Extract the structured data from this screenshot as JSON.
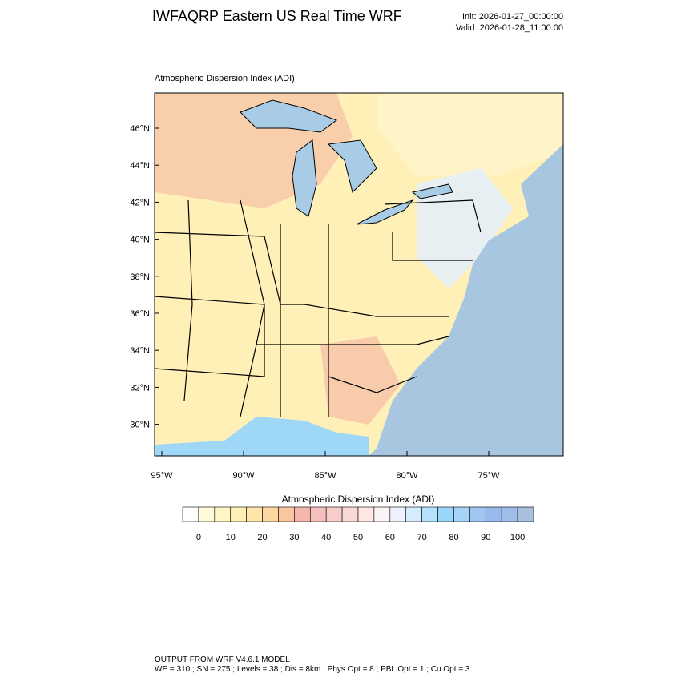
{
  "header": {
    "title": "IWFAQRP Eastern US Real Time WRF",
    "init": "Init: 2026-01-27_00:00:00",
    "valid": "Valid: 2026-01-28_11:00:00"
  },
  "map": {
    "title": "Atmospheric Dispersion Index   (ADI)",
    "lat_labels": [
      "46°N",
      "44°N",
      "42°N",
      "40°N",
      "38°N",
      "36°N",
      "34°N",
      "32°N",
      "30°N"
    ],
    "lon_labels": [
      "95°W",
      "90°W",
      "85°W",
      "80°W",
      "75°W"
    ]
  },
  "colorbar": {
    "title": "Atmospheric Dispersion Index  (ADI)",
    "range": [
      -5,
      105
    ],
    "ticks": [
      0,
      10,
      20,
      30,
      40,
      50,
      60,
      70,
      80,
      90,
      100
    ],
    "colors": [
      "#ffffff",
      "#fffbd8",
      "#fff6c4",
      "#ffefb4",
      "#ffe6a8",
      "#fdd7a0",
      "#f9c6a0",
      "#f5b6ac",
      "#f5c0bc",
      "#f8ccc8",
      "#fad8d6",
      "#fde6e4",
      "#fbf4f4",
      "#eef2ff",
      "#d4ecfc",
      "#b4e2fc",
      "#9ad6fa",
      "#a6d4f6",
      "#a2c6f2",
      "#98baee",
      "#a0bce8",
      "#a8c0dc"
    ]
  },
  "footer": {
    "line1": "OUTPUT FROM WRF V4.6.1 MODEL",
    "line2": "WE = 310 ; SN = 275 ; Levels = 38 ; Dis = 8km ; Phys Opt = 8 ; PBL Opt = 1 ; Cu Opt = 3"
  }
}
